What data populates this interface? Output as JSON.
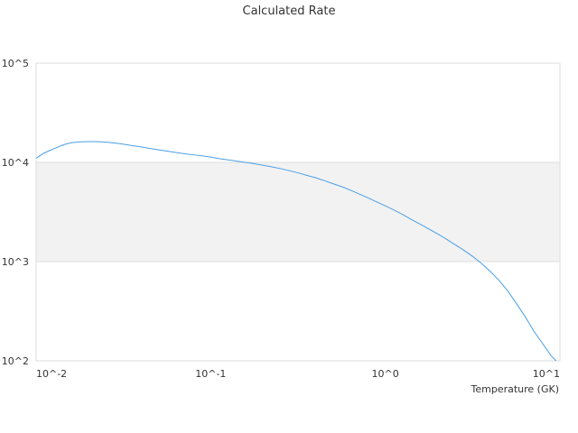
{
  "chart_data": {
    "type": "line",
    "title": "Calculated Rate",
    "xlabel": "Temperature (GK)",
    "ylabel": "",
    "x_scale": "log",
    "y_scale": "log",
    "xlim": [
      0.01,
      10
    ],
    "ylim": [
      100,
      100000
    ],
    "x_ticks": [
      {
        "value": 0.01,
        "label": "10^-2"
      },
      {
        "value": 0.1,
        "label": "10^-1"
      },
      {
        "value": 1,
        "label": "10^0"
      },
      {
        "value": 10,
        "label": "10^1"
      }
    ],
    "y_ticks": [
      {
        "value": 100,
        "label": "10^2"
      },
      {
        "value": 1000,
        "label": "10^3"
      },
      {
        "value": 10000,
        "label": "10^4"
      },
      {
        "value": 100000,
        "label": "10^5"
      }
    ],
    "grid": true,
    "alternating_band_color": "#f2f2f2",
    "series": [
      {
        "color": "#4a9fe6",
        "points": [
          [
            0.01,
            11000
          ],
          [
            0.011,
            12300
          ],
          [
            0.012,
            13200
          ],
          [
            0.013,
            14000
          ],
          [
            0.014,
            14800
          ],
          [
            0.015,
            15400
          ],
          [
            0.016,
            15800
          ],
          [
            0.018,
            16100
          ],
          [
            0.02,
            16200
          ],
          [
            0.022,
            16200
          ],
          [
            0.025,
            16000
          ],
          [
            0.028,
            15700
          ],
          [
            0.032,
            15200
          ],
          [
            0.036,
            14700
          ],
          [
            0.04,
            14300
          ],
          [
            0.045,
            13800
          ],
          [
            0.05,
            13400
          ],
          [
            0.056,
            13000
          ],
          [
            0.063,
            12600
          ],
          [
            0.071,
            12200
          ],
          [
            0.08,
            11900
          ],
          [
            0.09,
            11600
          ],
          [
            0.1,
            11300
          ],
          [
            0.112,
            10900
          ],
          [
            0.126,
            10600
          ],
          [
            0.141,
            10300
          ],
          [
            0.158,
            10000
          ],
          [
            0.178,
            9700
          ],
          [
            0.2,
            9350
          ],
          [
            0.224,
            9000
          ],
          [
            0.251,
            8650
          ],
          [
            0.282,
            8250
          ],
          [
            0.316,
            7850
          ],
          [
            0.355,
            7400
          ],
          [
            0.398,
            7000
          ],
          [
            0.447,
            6550
          ],
          [
            0.501,
            6100
          ],
          [
            0.562,
            5700
          ],
          [
            0.631,
            5250
          ],
          [
            0.708,
            4800
          ],
          [
            0.794,
            4400
          ],
          [
            0.891,
            4000
          ],
          [
            1.0,
            3650
          ],
          [
            1.122,
            3300
          ],
          [
            1.259,
            2980
          ],
          [
            1.413,
            2650
          ],
          [
            1.585,
            2380
          ],
          [
            1.778,
            2130
          ],
          [
            1.995,
            1900
          ],
          [
            2.239,
            1680
          ],
          [
            2.512,
            1480
          ],
          [
            2.818,
            1300
          ],
          [
            3.162,
            1130
          ],
          [
            3.548,
            960
          ],
          [
            3.981,
            800
          ],
          [
            4.467,
            650
          ],
          [
            5.012,
            510
          ],
          [
            5.623,
            380
          ],
          [
            6.31,
            280
          ],
          [
            7.079,
            200
          ],
          [
            7.943,
            150
          ],
          [
            8.913,
            112
          ],
          [
            9.5,
            100
          ]
        ]
      }
    ]
  }
}
